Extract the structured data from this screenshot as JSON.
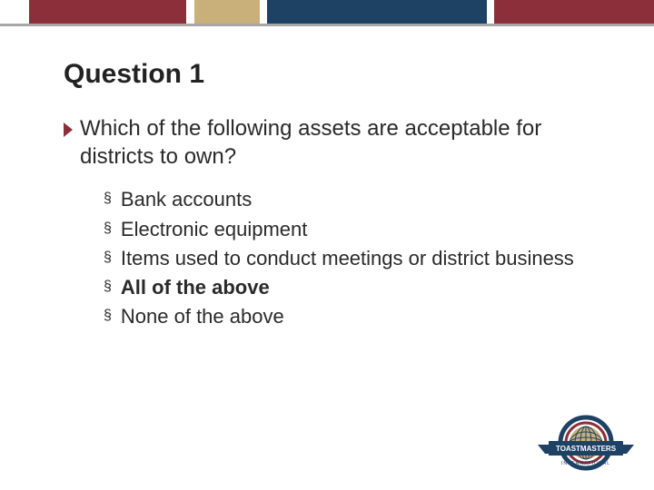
{
  "top_bar": {
    "segments": [
      {
        "width_pct": 4.5,
        "color": "#ffffff"
      },
      {
        "width_pct": 24,
        "color": "#8c2f3a"
      },
      {
        "width_pct": 1.2,
        "color": "#ffffff"
      },
      {
        "width_pct": 10,
        "color": "#c9b07a"
      },
      {
        "width_pct": 1.2,
        "color": "#ffffff"
      },
      {
        "width_pct": 33.5,
        "color": "#1e4264"
      },
      {
        "width_pct": 1.2,
        "color": "#ffffff"
      },
      {
        "width_pct": 24.4,
        "color": "#8c2f3a"
      }
    ],
    "divider_color": "#a7a7a7"
  },
  "title": "Question 1",
  "question": {
    "arrow_color": "#8c2f3a",
    "text": "Which of the following assets are acceptable for districts to own?"
  },
  "options": [
    {
      "text": "Bank accounts",
      "bold": false
    },
    {
      "text": "Electronic equipment",
      "bold": false
    },
    {
      "text": "Items used to conduct meetings or district business",
      "bold": false
    },
    {
      "text": "All of the above",
      "bold": true
    },
    {
      "text": "None of the above",
      "bold": false
    }
  ],
  "logo": {
    "outer_ring": "#1e4264",
    "inner_ring": "#8c2f3a",
    "globe": "#c9b07a",
    "globe_lines": "#1e4264",
    "banner": "#1e4264",
    "banner_text": "TOASTMASTERS",
    "sub_text": "INTERNATIONAL",
    "text_color": "#ffffff"
  }
}
